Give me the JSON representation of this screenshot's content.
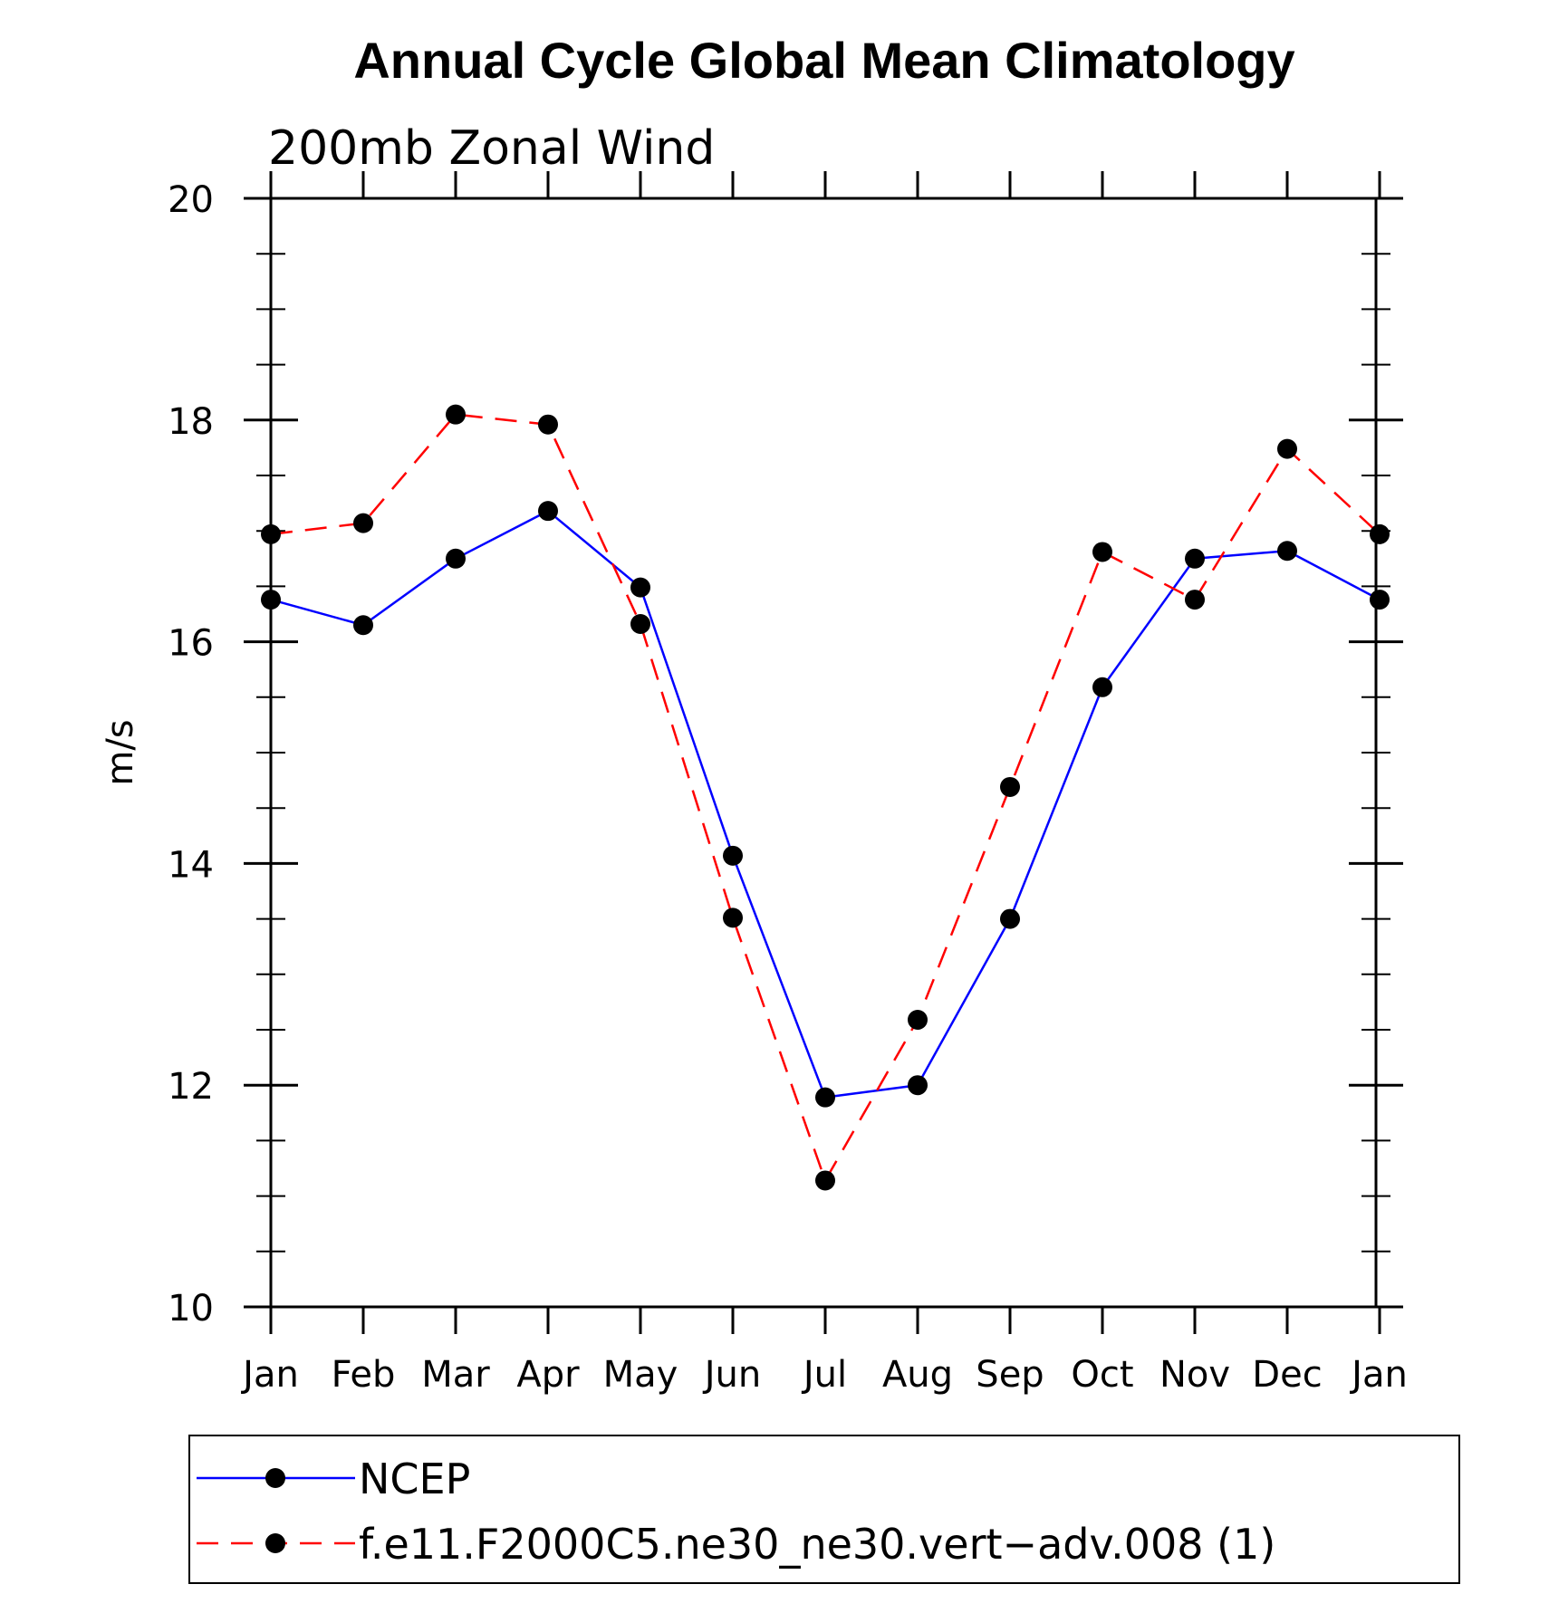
{
  "chart_data": {
    "type": "line",
    "title": "Annual Cycle Global Mean Climatology",
    "subtitle": "200mb Zonal Wind",
    "ylabel": "m/s",
    "xlabel": "",
    "ylim": [
      10,
      20
    ],
    "yticks": [
      "10",
      "12",
      "14",
      "16",
      "18",
      "20"
    ],
    "categories": [
      "Jan",
      "Feb",
      "Mar",
      "Apr",
      "May",
      "Jun",
      "Jul",
      "Aug",
      "Sep",
      "Oct",
      "Nov",
      "Dec",
      "Jan"
    ],
    "series": [
      {
        "name": "NCEP",
        "color": "#0000ff",
        "dash": "solid",
        "values": [
          16.38,
          16.15,
          16.75,
          17.18,
          16.49,
          14.07,
          11.89,
          12.0,
          13.5,
          15.59,
          16.75,
          16.82,
          16.38
        ]
      },
      {
        "name": "f.e11.F2000C5.ne30_ne30.vert−adv.008 (1)",
        "color": "#ff0000",
        "dash": "dashed",
        "values": [
          16.97,
          17.07,
          18.05,
          17.96,
          16.16,
          13.51,
          11.14,
          12.59,
          14.69,
          16.81,
          16.38,
          17.74,
          16.97
        ]
      }
    ],
    "legend_position": "bottom"
  }
}
